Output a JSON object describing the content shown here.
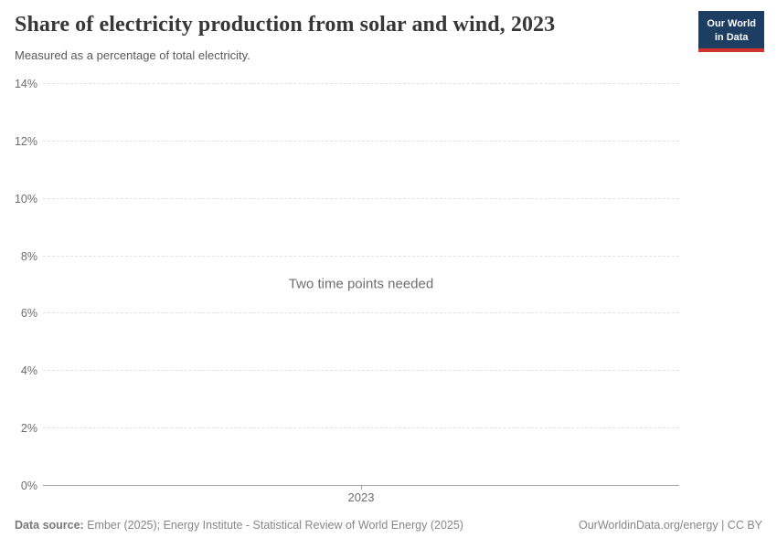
{
  "header": {
    "title": "Share of electricity production from solar and wind, 2023",
    "subtitle": "Measured as a percentage of total electricity.",
    "logo": {
      "line1": "Our World",
      "line2": "in Data",
      "bg_color": "#1d3d63",
      "accent_color": "#d0342c"
    }
  },
  "chart_data": {
    "type": "line",
    "title": "Share of electricity production from solar and wind, 2023",
    "xlabel": "",
    "ylabel": "",
    "ylim": [
      0,
      14
    ],
    "ytick_values": [
      14,
      12,
      10,
      8,
      6,
      4,
      2,
      0
    ],
    "ytick_labels": [
      "14%",
      "12%",
      "10%",
      "8%",
      "6%",
      "4%",
      "2%",
      "0%"
    ],
    "xtick_labels": [
      "2023"
    ],
    "grid": true,
    "grid_style": "dashed",
    "series": [],
    "empty_message": "Two time points needed"
  },
  "footer": {
    "data_source_label": "Data source:",
    "data_source_text": "Ember (2025); Energy Institute - Statistical Review of World Energy (2025)",
    "attribution": "OurWorldinData.org/energy | CC BY"
  },
  "colors": {
    "title_text": "#373737",
    "muted_text": "#6e6e6e",
    "gridline": "#e2e2e2",
    "axis_line": "#a5a5a5",
    "logo_navy": "#1d3d63",
    "logo_red": "#d0342c"
  }
}
